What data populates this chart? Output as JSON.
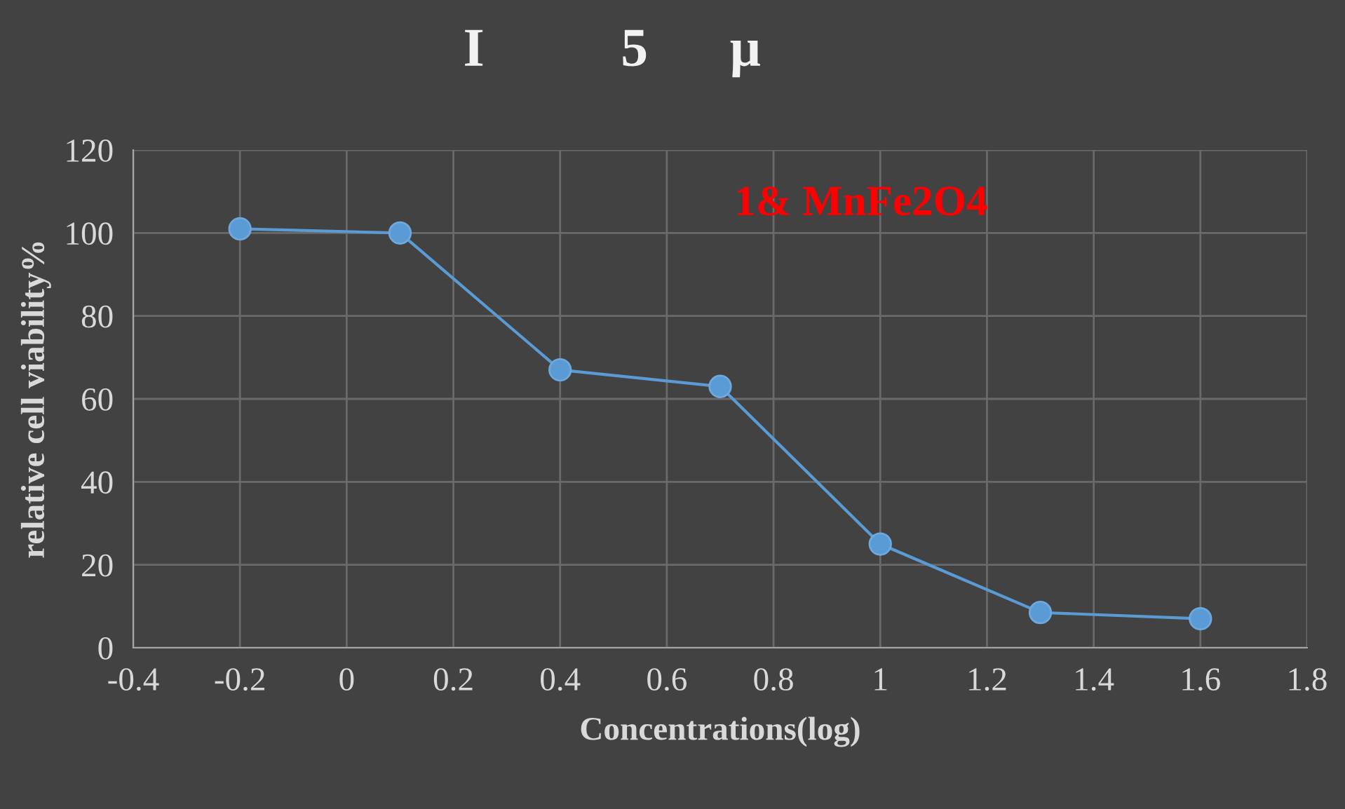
{
  "chart_data": {
    "type": "line",
    "title": "I          5      μ",
    "xlabel": "Concentrations(log)",
    "ylabel": "relative cell viability%",
    "x": [
      -0.2,
      0.1,
      0.4,
      0.7,
      1.0,
      1.3,
      1.6
    ],
    "series": [
      {
        "color": "#5b9bd5",
        "values": [
          101,
          100,
          67,
          63,
          25,
          8.5,
          7
        ]
      }
    ],
    "xlim": [
      -0.4,
      1.8
    ],
    "xticks": [
      -0.4,
      -0.2,
      0,
      0.2,
      0.4,
      0.6,
      0.8,
      1,
      1.2,
      1.4,
      1.6,
      1.8
    ],
    "ylim": [
      0,
      120
    ],
    "yticks": [
      0,
      20,
      40,
      60,
      80,
      100,
      120
    ],
    "annotations": [
      "1& MnFe2O4"
    ],
    "grid": true,
    "marker": "circle",
    "line_style": "solid",
    "legend": false
  }
}
